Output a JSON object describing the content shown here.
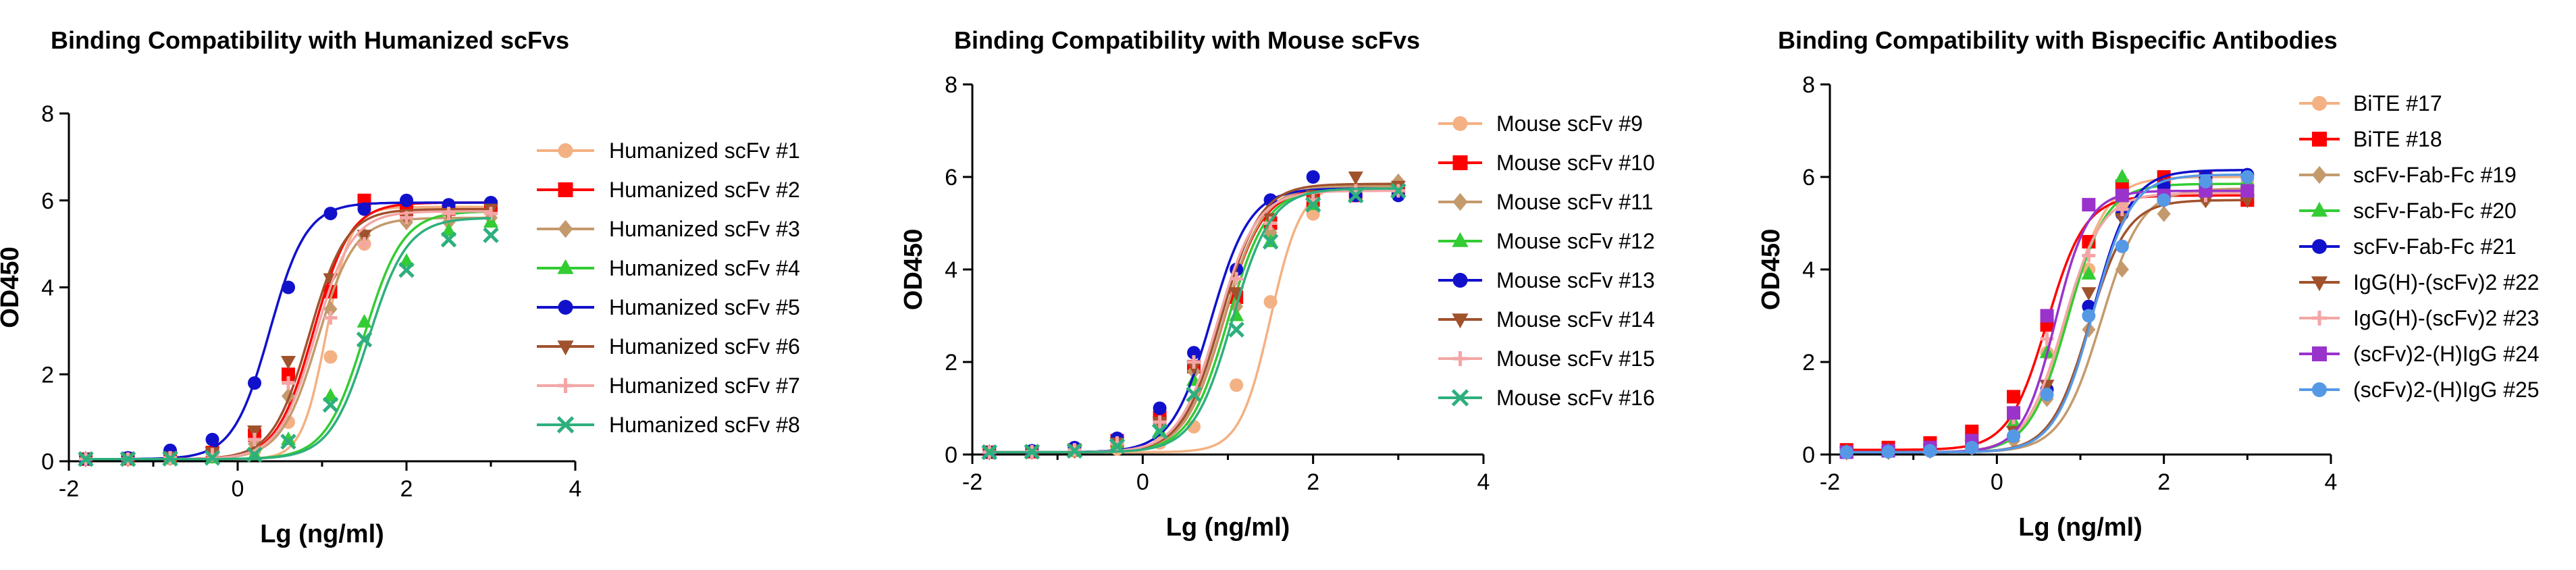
{
  "chart_data": [
    {
      "type": "scatter",
      "title": "Binding Compatibility with Humanized scFvs",
      "xlabel": "Lg (ng/ml)",
      "ylabel": "OD450",
      "xlim": [
        -2,
        4
      ],
      "ylim": [
        0,
        8
      ],
      "xticks": [
        -2,
        0,
        2,
        4
      ],
      "yticks": [
        0,
        2,
        4,
        6,
        8
      ],
      "grid": false,
      "legend": "right",
      "series": [
        {
          "name": "Humanized scFv #1",
          "marker": "circle",
          "color": "#F4B183",
          "x": [
            -1.8,
            -1.3,
            -0.8,
            -0.3,
            0.2,
            0.6,
            1.1,
            1.5,
            2.0,
            2.5,
            3.0
          ],
          "y": [
            0.05,
            0.05,
            0.06,
            0.1,
            0.25,
            0.9,
            2.4,
            5.0,
            5.7,
            5.8,
            5.8
          ],
          "fit": {
            "bottom": 0.05,
            "top": 5.85,
            "ec50": 1.05,
            "hill": 3.0
          }
        },
        {
          "name": "Humanized scFv #2",
          "marker": "square",
          "color": "#FF0000",
          "x": [
            -1.8,
            -1.3,
            -0.8,
            -0.3,
            0.2,
            0.6,
            1.1,
            1.5,
            2.0,
            2.5,
            3.0
          ],
          "y": [
            0.05,
            0.06,
            0.1,
            0.2,
            0.6,
            2.0,
            3.9,
            6.0,
            5.8,
            5.8,
            5.85
          ],
          "fit": {
            "bottom": 0.05,
            "top": 5.95,
            "ec50": 0.9,
            "hill": 2.0
          }
        },
        {
          "name": "Humanized scFv #3",
          "marker": "diamond",
          "color": "#C49A6C",
          "x": [
            -1.8,
            -1.3,
            -0.8,
            -0.3,
            0.2,
            0.6,
            1.1,
            1.5,
            2.0,
            2.5,
            3.0
          ],
          "y": [
            0.05,
            0.05,
            0.08,
            0.15,
            0.4,
            1.5,
            3.5,
            5.2,
            5.5,
            5.5,
            5.6
          ],
          "fit": {
            "bottom": 0.05,
            "top": 5.6,
            "ec50": 0.95,
            "hill": 2.0
          }
        },
        {
          "name": "Humanized scFv #4",
          "marker": "triangle",
          "color": "#33CC33",
          "x": [
            -1.8,
            -1.3,
            -0.8,
            -0.3,
            0.2,
            0.6,
            1.1,
            1.5,
            2.0,
            2.5,
            3.0
          ],
          "y": [
            0.05,
            0.05,
            0.06,
            0.08,
            0.15,
            0.5,
            1.5,
            3.2,
            4.6,
            5.3,
            5.5
          ],
          "fit": {
            "bottom": 0.05,
            "top": 5.75,
            "ec50": 1.5,
            "hill": 1.9
          }
        },
        {
          "name": "Humanized scFv #5",
          "marker": "circle",
          "color": "#1111CC",
          "x": [
            -1.8,
            -1.3,
            -0.8,
            -0.3,
            0.2,
            0.6,
            1.1,
            1.5,
            2.0,
            2.5,
            3.0
          ],
          "y": [
            0.05,
            0.08,
            0.25,
            0.5,
            1.8,
            4.0,
            5.7,
            5.8,
            6.0,
            5.9,
            5.95
          ],
          "fit": {
            "bottom": 0.05,
            "top": 5.95,
            "ec50": 0.38,
            "hill": 2.0
          }
        },
        {
          "name": "Humanized scFv #6",
          "marker": "triangle-down",
          "color": "#A0522D",
          "x": [
            -1.8,
            -1.3,
            -0.8,
            -0.3,
            0.2,
            0.6,
            1.1,
            1.5,
            2.0,
            2.5,
            3.0
          ],
          "y": [
            0.05,
            0.06,
            0.1,
            0.2,
            0.7,
            2.3,
            4.2,
            5.2,
            5.6,
            5.7,
            5.8
          ],
          "fit": {
            "bottom": 0.05,
            "top": 5.8,
            "ec50": 0.85,
            "hill": 2.0
          }
        },
        {
          "name": "Humanized scFv #7",
          "marker": "plus",
          "color": "#F4A6A6",
          "x": [
            -1.8,
            -1.3,
            -0.8,
            -0.3,
            0.2,
            0.6,
            1.1,
            1.5,
            2.0,
            2.5,
            3.0
          ],
          "y": [
            0.05,
            0.05,
            0.08,
            0.15,
            0.5,
            1.8,
            3.3,
            5.0,
            5.6,
            5.7,
            5.7
          ],
          "fit": {
            "bottom": 0.05,
            "top": 5.75,
            "ec50": 0.92,
            "hill": 2.0
          }
        },
        {
          "name": "Humanized scFv #8",
          "marker": "x",
          "color": "#2EAF7D",
          "x": [
            -1.8,
            -1.3,
            -0.8,
            -0.3,
            0.2,
            0.6,
            1.1,
            1.5,
            2.0,
            2.5,
            3.0
          ],
          "y": [
            0.05,
            0.05,
            0.06,
            0.08,
            0.15,
            0.45,
            1.3,
            2.8,
            4.4,
            5.1,
            5.2
          ],
          "fit": {
            "bottom": 0.05,
            "top": 5.6,
            "ec50": 1.55,
            "hill": 1.9
          }
        }
      ]
    },
    {
      "type": "scatter",
      "title": "Binding Compatibility with  Mouse scFvs",
      "xlabel": "Lg (ng/ml)",
      "ylabel": "OD450",
      "xlim": [
        -2,
        4
      ],
      "ylim": [
        0,
        8
      ],
      "xticks": [
        -2,
        0,
        2,
        4
      ],
      "yticks": [
        0,
        2,
        4,
        6,
        8
      ],
      "grid": false,
      "legend": "right",
      "series": [
        {
          "name": "Mouse scFv #9",
          "marker": "circle",
          "color": "#F4B183",
          "x": [
            -1.8,
            -1.3,
            -0.8,
            -0.3,
            0.2,
            0.6,
            1.1,
            1.5,
            2.0,
            2.5,
            3.0
          ],
          "y": [
            0.05,
            0.06,
            0.08,
            0.12,
            0.25,
            0.6,
            1.5,
            3.3,
            5.2,
            5.7,
            5.8
          ],
          "fit": {
            "bottom": 0.05,
            "top": 5.85,
            "ec50": 1.5,
            "hill": 2.4
          }
        },
        {
          "name": "Mouse scFv #10",
          "marker": "square",
          "color": "#FF0000",
          "x": [
            -1.8,
            -1.3,
            -0.8,
            -0.3,
            0.2,
            0.6,
            1.1,
            1.5,
            2.0,
            2.5,
            3.0
          ],
          "y": [
            0.05,
            0.06,
            0.1,
            0.3,
            0.8,
            1.9,
            3.4,
            5.0,
            5.5,
            5.6,
            5.7
          ],
          "fit": {
            "bottom": 0.05,
            "top": 5.75,
            "ec50": 0.95,
            "hill": 1.9
          }
        },
        {
          "name": "Mouse scFv #11",
          "marker": "diamond",
          "color": "#C49A6C",
          "x": [
            -1.8,
            -1.3,
            -0.8,
            -0.3,
            0.2,
            0.6,
            1.1,
            1.5,
            2.0,
            2.5,
            3.0
          ],
          "y": [
            0.05,
            0.06,
            0.08,
            0.2,
            0.6,
            1.8,
            3.2,
            4.8,
            5.5,
            5.7,
            5.9
          ],
          "fit": {
            "bottom": 0.05,
            "top": 5.8,
            "ec50": 0.95,
            "hill": 1.9
          }
        },
        {
          "name": "Mouse scFv #12",
          "marker": "triangle",
          "color": "#33CC33",
          "x": [
            -1.8,
            -1.3,
            -0.8,
            -0.3,
            0.2,
            0.6,
            1.1,
            1.5,
            2.0,
            2.5,
            3.0
          ],
          "y": [
            0.05,
            0.06,
            0.08,
            0.2,
            0.5,
            1.6,
            3.0,
            4.6,
            5.4,
            5.6,
            5.7
          ],
          "fit": {
            "bottom": 0.05,
            "top": 5.75,
            "ec50": 1.0,
            "hill": 1.9
          }
        },
        {
          "name": "Mouse scFv #13",
          "marker": "circle",
          "color": "#1111CC",
          "x": [
            -1.8,
            -1.3,
            -0.8,
            -0.3,
            0.2,
            0.6,
            1.1,
            1.5,
            2.0,
            2.5,
            3.0
          ],
          "y": [
            0.05,
            0.08,
            0.15,
            0.35,
            1.0,
            2.2,
            4.0,
            5.5,
            6.0,
            5.6,
            5.6
          ],
          "fit": {
            "bottom": 0.05,
            "top": 5.75,
            "ec50": 0.8,
            "hill": 1.9
          }
        },
        {
          "name": "Mouse scFv #14",
          "marker": "triangle-down",
          "color": "#A0522D",
          "x": [
            -1.8,
            -1.3,
            -0.8,
            -0.3,
            0.2,
            0.6,
            1.1,
            1.5,
            2.0,
            2.5,
            3.0
          ],
          "y": [
            0.05,
            0.06,
            0.1,
            0.25,
            0.7,
            1.9,
            3.5,
            5.1,
            5.6,
            6.0,
            5.8
          ],
          "fit": {
            "bottom": 0.05,
            "top": 5.85,
            "ec50": 0.92,
            "hill": 1.9
          }
        },
        {
          "name": "Mouse scFv #15",
          "marker": "plus",
          "color": "#F4A6A6",
          "x": [
            -1.8,
            -1.3,
            -0.8,
            -0.3,
            0.2,
            0.6,
            1.1,
            1.5,
            2.0,
            2.5,
            3.0
          ],
          "y": [
            0.05,
            0.06,
            0.1,
            0.25,
            0.7,
            2.0,
            3.8,
            5.0,
            5.5,
            5.7,
            5.7
          ],
          "fit": {
            "bottom": 0.05,
            "top": 5.7,
            "ec50": 0.88,
            "hill": 1.9
          }
        },
        {
          "name": "Mouse scFv #16",
          "marker": "x",
          "color": "#2EAF7D",
          "x": [
            -1.8,
            -1.3,
            -0.8,
            -0.3,
            0.2,
            0.6,
            1.1,
            1.5,
            2.0,
            2.5,
            3.0
          ],
          "y": [
            0.05,
            0.06,
            0.08,
            0.18,
            0.5,
            1.3,
            2.7,
            4.6,
            5.4,
            5.6,
            5.7
          ],
          "fit": {
            "bottom": 0.05,
            "top": 5.75,
            "ec50": 1.05,
            "hill": 1.9
          }
        }
      ]
    },
    {
      "type": "scatter",
      "title": "Binding Compatibility with Bispecific Antibodies",
      "xlabel": "Lg (ng/ml)",
      "ylabel": "OD450",
      "xlim": [
        -2,
        4
      ],
      "ylim": [
        0,
        8
      ],
      "xticks": [
        -2,
        0,
        2,
        4
      ],
      "yticks": [
        0,
        2,
        4,
        6,
        8
      ],
      "grid": false,
      "legend": "right",
      "series": [
        {
          "name": "BiTE #17",
          "marker": "circle",
          "color": "#F4B183",
          "x": [
            -1.8,
            -1.3,
            -0.8,
            -0.3,
            0.2,
            0.6,
            1.1,
            1.5,
            2.0,
            2.5,
            3.0
          ],
          "y": [
            0.05,
            0.08,
            0.15,
            0.3,
            0.9,
            2.2,
            4.0,
            5.4,
            5.9,
            6.0,
            5.9
          ],
          "fit": {
            "bottom": 0.05,
            "top": 6.0,
            "ec50": 0.85,
            "hill": 1.9
          }
        },
        {
          "name": "BiTE #18",
          "marker": "square",
          "color": "#FF0000",
          "x": [
            -1.8,
            -1.3,
            -0.8,
            -0.3,
            0.2,
            0.6,
            1.1,
            1.5,
            2.0,
            2.5,
            3.0
          ],
          "y": [
            0.1,
            0.15,
            0.25,
            0.5,
            1.25,
            2.8,
            4.6,
            5.8,
            6.0,
            6.0,
            5.5
          ],
          "fit": {
            "bottom": 0.1,
            "top": 5.6,
            "ec50": 0.6,
            "hill": 1.9
          }
        },
        {
          "name": "scFv-Fab-Fc #19",
          "marker": "diamond",
          "color": "#C49A6C",
          "x": [
            -1.8,
            -1.3,
            -0.8,
            -0.3,
            0.2,
            0.6,
            1.1,
            1.5,
            2.0,
            2.5,
            3.0
          ],
          "y": [
            0.05,
            0.06,
            0.08,
            0.15,
            0.3,
            1.2,
            2.7,
            4.0,
            5.2,
            5.5,
            5.6
          ],
          "fit": {
            "bottom": 0.05,
            "top": 5.75,
            "ec50": 1.25,
            "hill": 1.8
          }
        },
        {
          "name": "scFv-Fab-Fc #20",
          "marker": "triangle",
          "color": "#33CC33",
          "x": [
            -1.8,
            -1.3,
            -0.8,
            -0.3,
            0.2,
            0.6,
            1.1,
            1.5,
            2.0,
            2.5,
            3.0
          ],
          "y": [
            0.05,
            0.08,
            0.12,
            0.25,
            0.7,
            2.2,
            3.9,
            6.0,
            5.8,
            5.9,
            5.9
          ],
          "fit": {
            "bottom": 0.05,
            "top": 5.85,
            "ec50": 0.85,
            "hill": 1.9
          }
        },
        {
          "name": "scFv-Fab-Fc #21",
          "marker": "circle",
          "color": "#1111CC",
          "x": [
            -1.8,
            -1.3,
            -0.8,
            -0.3,
            0.2,
            0.6,
            1.1,
            1.5,
            2.0,
            2.5,
            3.0
          ],
          "y": [
            0.05,
            0.06,
            0.08,
            0.15,
            0.4,
            1.4,
            3.2,
            5.2,
            5.8,
            6.0,
            6.05
          ],
          "fit": {
            "bottom": 0.05,
            "top": 6.15,
            "ec50": 1.15,
            "hill": 1.9
          }
        },
        {
          "name": "IgG(H)-(scFv)2 #22",
          "marker": "triangle-down",
          "color": "#A0522D",
          "x": [
            -1.8,
            -1.3,
            -0.8,
            -0.3,
            0.2,
            0.6,
            1.1,
            1.5,
            2.0,
            2.5,
            3.0
          ],
          "y": [
            0.05,
            0.06,
            0.1,
            0.2,
            0.5,
            1.5,
            3.5,
            5.1,
            5.5,
            5.5,
            5.5
          ],
          "fit": {
            "bottom": 0.05,
            "top": 5.5,
            "ec50": 1.1,
            "hill": 1.9
          }
        },
        {
          "name": "IgG(H)-(scFv)2 #23",
          "marker": "plus",
          "color": "#F4A6A6",
          "x": [
            -1.8,
            -1.3,
            -0.8,
            -0.3,
            0.2,
            0.6,
            1.1,
            1.5,
            2.0,
            2.5,
            3.0
          ],
          "y": [
            0.05,
            0.06,
            0.1,
            0.25,
            0.8,
            2.5,
            4.3,
            5.3,
            5.5,
            5.6,
            5.7
          ],
          "fit": {
            "bottom": 0.05,
            "top": 5.65,
            "ec50": 0.8,
            "hill": 1.9
          }
        },
        {
          "name": "(scFv)2-(H)IgG #24",
          "marker": "square",
          "color": "#9933CC",
          "x": [
            -1.8,
            -1.3,
            -0.8,
            -0.3,
            0.2,
            0.6,
            1.1,
            1.5,
            2.0,
            2.5,
            3.0
          ],
          "y": [
            0.05,
            0.08,
            0.15,
            0.3,
            0.9,
            3.0,
            5.4,
            5.6,
            5.6,
            5.7,
            5.7
          ],
          "fit": {
            "bottom": 0.05,
            "top": 5.7,
            "ec50": 0.7,
            "hill": 2.2
          }
        },
        {
          "name": "(scFv)2-(H)IgG #25",
          "marker": "circle",
          "color": "#5599E6",
          "x": [
            -1.8,
            -1.3,
            -0.8,
            -0.3,
            0.2,
            0.6,
            1.1,
            1.5,
            2.0,
            2.5,
            3.0
          ],
          "y": [
            0.05,
            0.06,
            0.08,
            0.15,
            0.4,
            1.3,
            3.0,
            4.5,
            5.5,
            5.9,
            6.0
          ],
          "fit": {
            "bottom": 0.05,
            "top": 6.05,
            "ec50": 1.15,
            "hill": 1.9
          }
        }
      ]
    }
  ]
}
